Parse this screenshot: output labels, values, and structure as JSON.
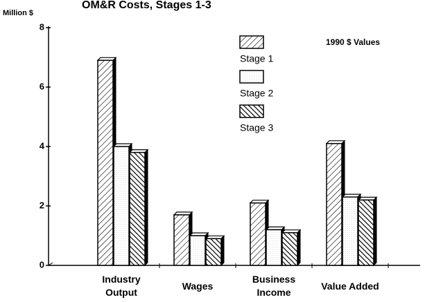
{
  "chart_data": {
    "type": "bar",
    "title": "OM&R Costs, Stages 1-3",
    "y_axis_label": "Million $",
    "annotation": "1990 $ Values",
    "categories": [
      "Industry Output",
      "Wages",
      "Business Income",
      "Value Added"
    ],
    "series": [
      {
        "name": "Stage 1",
        "color": "#000000",
        "values": [
          6.9,
          1.7,
          2.1,
          4.1
        ]
      },
      {
        "name": "Stage 2",
        "color": "#000000",
        "values": [
          4.0,
          1.0,
          1.2,
          2.3
        ]
      },
      {
        "name": "Stage 3",
        "color": "#000000",
        "values": [
          3.8,
          0.9,
          1.1,
          2.2
        ]
      }
    ],
    "ylim": [
      0,
      8
    ],
    "yticks": [
      0,
      2,
      4,
      6,
      8
    ],
    "grid": false
  }
}
